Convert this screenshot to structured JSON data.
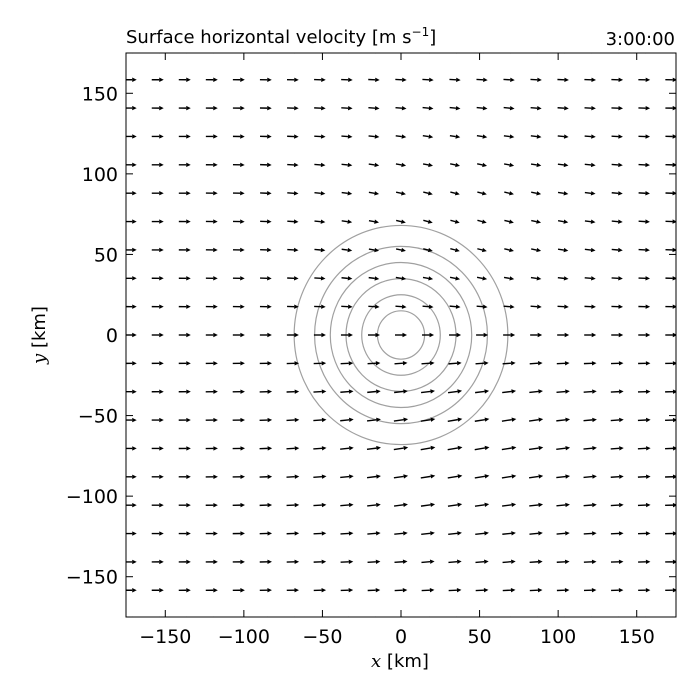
{
  "chart_data": {
    "type": "quiver",
    "title": "Surface horizontal velocity [m s",
    "title_exponent": "−1",
    "title_close": "]",
    "time_label": "3:00:00",
    "xlabel_var": "x",
    "xlabel_unit": " [km]",
    "ylabel_var": "y",
    "ylabel_unit": " [km]",
    "xlim": [
      -175,
      175
    ],
    "ylim": [
      -175,
      175
    ],
    "xticks": [
      -150,
      -100,
      -50,
      0,
      50,
      100,
      150
    ],
    "yticks": [
      150,
      100,
      50,
      0,
      -50,
      -100,
      -150
    ],
    "xtick_labels": [
      "−150",
      "−100",
      "−50",
      "0",
      "50",
      "100",
      "150"
    ],
    "ytick_labels": [
      "150",
      "100",
      "50",
      "0",
      "−50",
      "−100",
      "−150"
    ],
    "grid": false,
    "vector_field": {
      "x_start": -172,
      "x_step": 17.2,
      "nx": 21,
      "y_start": -176,
      "y_step": 17.6,
      "ny": 21,
      "background_u": 1.0,
      "background_v": 0.0,
      "vortex_center": [
        40,
        0
      ],
      "vortex_strength": 0.18,
      "vortex_radius_km": 70
    },
    "contours": {
      "center": [
        0,
        0
      ],
      "radii_km": [
        15,
        25,
        35,
        45,
        55,
        68
      ],
      "color": "#a0a0a0"
    }
  }
}
